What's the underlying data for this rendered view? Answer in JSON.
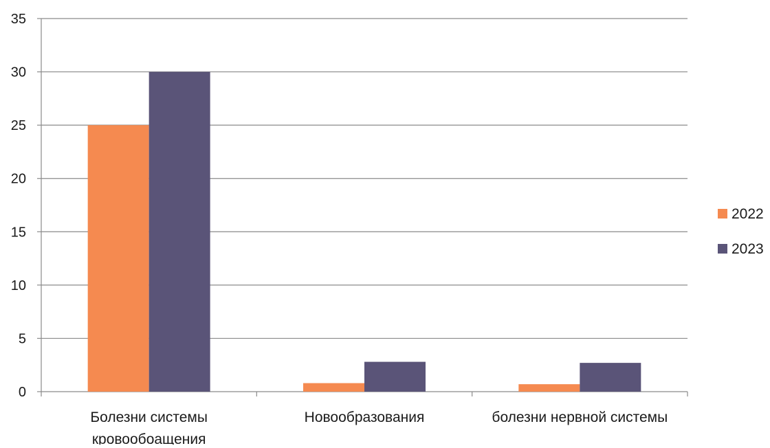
{
  "chart_data": {
    "type": "bar",
    "categories": [
      [
        "Болезни системы",
        "кровообоащения"
      ],
      [
        "Новообразования"
      ],
      [
        "болезни нервной системы"
      ]
    ],
    "series": [
      {
        "name": "2022",
        "values": [
          25,
          0.8,
          0.7
        ],
        "color": "#f58a50"
      },
      {
        "name": "2023",
        "values": [
          30,
          2.8,
          2.7
        ],
        "color": "#5a5478"
      }
    ],
    "ylim": [
      0,
      35
    ],
    "yticks": [
      0,
      5,
      10,
      15,
      20,
      25,
      30,
      35
    ],
    "grid": true,
    "legend_position": "right"
  }
}
